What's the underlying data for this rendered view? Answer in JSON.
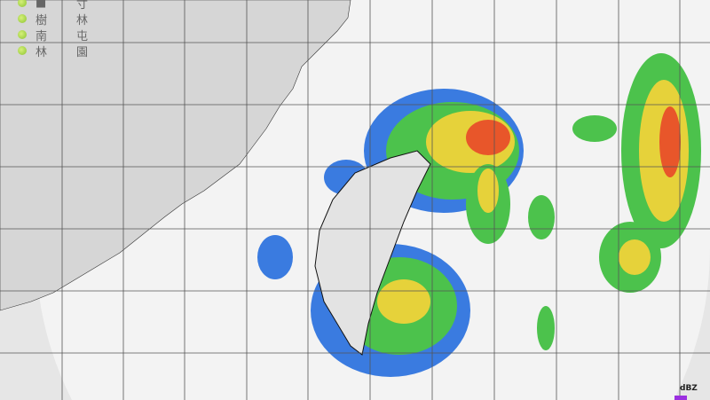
{
  "legend": {
    "stations": [
      {
        "a": "■",
        "b": "寸"
      },
      {
        "a": "樹",
        "b": "林"
      },
      {
        "a": "南",
        "b": "屯"
      },
      {
        "a": "林",
        "b": "園"
      }
    ],
    "marker_icon": "green-dot-icon"
  },
  "scale": {
    "unit": "dBZ"
  },
  "colors": {
    "land": "#d9d9d9",
    "sea": "#e6e6e6",
    "radar_range": "#f3f3f3",
    "grid": "#555555"
  }
}
